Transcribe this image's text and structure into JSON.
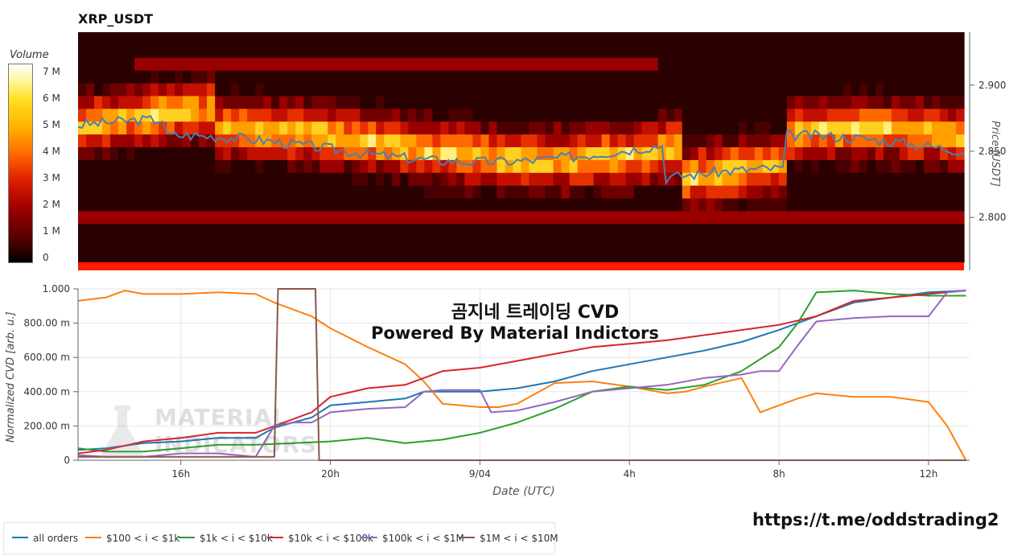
{
  "heatmap": {
    "title": "XRP_USDT",
    "colorbar": {
      "title": "Volume",
      "ticks": [
        "7 M",
        "6 M",
        "5 M",
        "4 M",
        "3 M",
        "2 M",
        "1 M",
        "0"
      ],
      "max": 7.5
    },
    "price_axis_label": "Price [USDT]",
    "price_ticks": [
      "2.900",
      "2.850",
      "2.800"
    ],
    "price_tick_values": [
      2.9,
      2.85,
      2.8
    ],
    "price_range": [
      2.76,
      2.94
    ],
    "price_line_color": "#4a7fb0"
  },
  "chart_data": {
    "type": "line",
    "title": "",
    "xlabel": "Date (UTC)",
    "ylabel": "Normalized CVD [arb. u.]",
    "x_ticks": [
      "16h",
      "20h",
      "9/04",
      "4h",
      "8h",
      "12h"
    ],
    "x_tick_hours": [
      16,
      20,
      24,
      28,
      32,
      36
    ],
    "x_range_hours": [
      13.25,
      37.1
    ],
    "y_ticks": [
      "1.000",
      "800.00 m",
      "600.00 m",
      "400.00 m",
      "200.00 m",
      "0"
    ],
    "y_tick_values": [
      1.0,
      0.8,
      0.6,
      0.4,
      0.2,
      0.0
    ],
    "ylim": [
      0,
      1
    ],
    "grid": true,
    "legend_position": "bottom-left",
    "series": [
      {
        "name": "all orders",
        "color": "#1f77b4",
        "x": [
          13.25,
          14,
          15,
          16,
          17,
          18,
          18.5,
          19,
          19.5,
          20,
          21,
          22,
          22.5,
          23,
          24,
          25,
          26,
          27,
          28,
          29,
          30,
          31,
          32,
          33,
          34,
          35,
          36,
          37
        ],
        "values": [
          0.06,
          0.07,
          0.1,
          0.11,
          0.13,
          0.13,
          0.19,
          0.22,
          0.25,
          0.32,
          0.34,
          0.36,
          0.4,
          0.4,
          0.4,
          0.42,
          0.46,
          0.52,
          0.56,
          0.6,
          0.64,
          0.69,
          0.76,
          0.84,
          0.92,
          0.95,
          0.98,
          0.99
        ]
      },
      {
        "name": "$100 < i < $1k",
        "color": "#ff7f0e",
        "x": [
          13.25,
          14,
          14.5,
          15,
          16,
          17,
          18,
          18.5,
          19,
          19.5,
          20,
          21,
          22,
          22.5,
          23,
          24,
          24.5,
          25,
          26,
          27,
          28,
          29,
          29.5,
          30,
          31,
          31.5,
          32,
          32.5,
          33,
          34,
          35,
          36,
          36.5,
          37
        ],
        "values": [
          0.93,
          0.95,
          0.99,
          0.97,
          0.97,
          0.98,
          0.97,
          0.92,
          0.88,
          0.84,
          0.77,
          0.66,
          0.56,
          0.46,
          0.33,
          0.31,
          0.31,
          0.33,
          0.45,
          0.46,
          0.43,
          0.39,
          0.4,
          0.43,
          0.48,
          0.28,
          0.32,
          0.36,
          0.39,
          0.37,
          0.37,
          0.34,
          0.2,
          0.0
        ]
      },
      {
        "name": "$1k < i < $10k",
        "color": "#2ca02c",
        "x": [
          13.25,
          14,
          15,
          16,
          17,
          18,
          19,
          20,
          21,
          22,
          23,
          24,
          25,
          26,
          27,
          28,
          29,
          30,
          31,
          32,
          32.5,
          33,
          34,
          35,
          36,
          37
        ],
        "values": [
          0.07,
          0.05,
          0.05,
          0.07,
          0.09,
          0.09,
          0.1,
          0.11,
          0.13,
          0.1,
          0.12,
          0.16,
          0.22,
          0.3,
          0.4,
          0.43,
          0.41,
          0.44,
          0.52,
          0.66,
          0.8,
          0.98,
          0.99,
          0.97,
          0.96,
          0.96
        ]
      },
      {
        "name": "$10k < i < $100k",
        "color": "#d62728",
        "x": [
          13.25,
          14,
          15,
          16,
          17,
          18,
          18.5,
          19,
          19.5,
          20,
          21,
          22,
          22.5,
          23,
          24,
          25,
          26,
          27,
          28,
          29,
          30,
          31,
          32,
          33,
          34,
          35,
          36,
          37
        ],
        "values": [
          0.04,
          0.06,
          0.11,
          0.13,
          0.16,
          0.16,
          0.2,
          0.24,
          0.28,
          0.37,
          0.42,
          0.44,
          0.48,
          0.52,
          0.54,
          0.58,
          0.62,
          0.66,
          0.68,
          0.7,
          0.73,
          0.76,
          0.79,
          0.84,
          0.93,
          0.95,
          0.97,
          0.99
        ]
      },
      {
        "name": "$100k < i < $1M",
        "color": "#9467bd",
        "x": [
          13.25,
          14,
          15,
          16,
          17,
          18,
          18.5,
          19,
          19.5,
          20,
          21,
          22,
          22.5,
          23,
          24,
          24.3,
          25,
          26,
          27,
          28,
          29,
          30,
          31,
          31.5,
          32,
          32.5,
          33,
          34,
          35,
          36,
          36.5,
          37
        ],
        "values": [
          0.03,
          0.02,
          0.02,
          0.04,
          0.04,
          0.02,
          0.2,
          0.22,
          0.22,
          0.28,
          0.3,
          0.31,
          0.4,
          0.41,
          0.41,
          0.28,
          0.29,
          0.34,
          0.4,
          0.42,
          0.44,
          0.48,
          0.5,
          0.52,
          0.52,
          0.67,
          0.81,
          0.83,
          0.84,
          0.84,
          0.98,
          0.99
        ]
      },
      {
        "name": "$1M < i < $10M",
        "color": "#8c564b",
        "x": [
          13.25,
          18.5,
          18.6,
          19.6,
          19.7,
          37
        ],
        "values": [
          0.02,
          0.02,
          1.0,
          1.0,
          0.0,
          0.0
        ]
      }
    ]
  },
  "annotation": {
    "line1": "곰지네 트레이딩 CVD",
    "line2": "Powered By Material Indictors"
  },
  "watermark": {
    "line1": "MATERIAL",
    "line2": "INDICATORS"
  },
  "footer": {
    "url": "https://t.me/oddstrading2"
  }
}
